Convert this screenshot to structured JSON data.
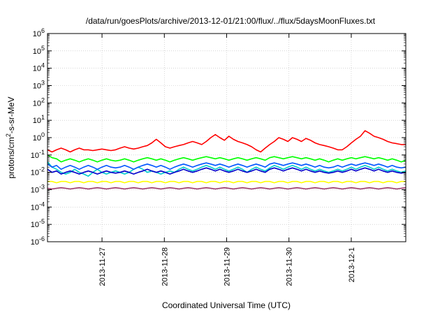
{
  "chart_data": {
    "type": "line",
    "title": "/data/run/goesPlots/archive/2013-12-01/21:00/flux/../flux/5daysMoonFluxes.txt",
    "xlabel": "Coordinated Universal Time (UTC)",
    "ylabel": "protons/cm2-s-sr-MeV",
    "ylabel_parts": [
      "protons/cm",
      "2",
      "-s-sr-MeV"
    ],
    "yscale": "log",
    "ylim": [
      1e-06,
      1000000.0
    ],
    "y_ticks": [
      {
        "value": 1e-06,
        "base": "10",
        "exp": "-6"
      },
      {
        "value": 1e-05,
        "base": "10",
        "exp": "-5"
      },
      {
        "value": 0.0001,
        "base": "10",
        "exp": "-4"
      },
      {
        "value": 0.001,
        "base": "10",
        "exp": "-3"
      },
      {
        "value": 0.01,
        "base": "10",
        "exp": "-2"
      },
      {
        "value": 0.1,
        "base": "10",
        "exp": "-1"
      },
      {
        "value": 1,
        "base": "10",
        "exp": "0"
      },
      {
        "value": 10,
        "base": "10",
        "exp": "1"
      },
      {
        "value": 100,
        "base": "10",
        "exp": "2"
      },
      {
        "value": 1000,
        "base": "10",
        "exp": "3"
      },
      {
        "value": 10000,
        "base": "10",
        "exp": "4"
      },
      {
        "value": 100000,
        "base": "10",
        "exp": "5"
      },
      {
        "value": 1000000,
        "base": "10",
        "exp": "6"
      }
    ],
    "xlim": [
      "2013-11-26T03:00",
      "2013-12-01T21:00"
    ],
    "x_ticks": [
      "2013-11-27",
      "2013-11-28",
      "2013-11-29",
      "2013-11-30",
      "2013-12-1"
    ],
    "x_tick_values": [
      "2013-11-27T00:00",
      "2013-11-28T00:00",
      "2013-11-29T00:00",
      "2013-11-30T00:00",
      "2013-12-01T00:00"
    ],
    "grid": true,
    "legend": "none",
    "series": [
      {
        "color": "#ff0000",
        "values": [
          0.2,
          0.15,
          0.2,
          0.25,
          0.2,
          0.15,
          0.2,
          0.25,
          0.2,
          0.2,
          0.18,
          0.2,
          0.22,
          0.2,
          0.18,
          0.2,
          0.25,
          0.3,
          0.25,
          0.22,
          0.25,
          0.3,
          0.35,
          0.5,
          0.8,
          0.5,
          0.3,
          0.25,
          0.3,
          0.35,
          0.4,
          0.5,
          0.6,
          0.5,
          0.4,
          0.6,
          1.0,
          1.5,
          1.0,
          0.7,
          1.2,
          0.8,
          0.6,
          0.5,
          0.4,
          0.3,
          0.2,
          0.15,
          0.25,
          0.4,
          0.6,
          1.0,
          0.8,
          0.6,
          1.0,
          0.8,
          0.6,
          0.9,
          0.7,
          0.5,
          0.4,
          0.35,
          0.3,
          0.25,
          0.2,
          0.2,
          0.3,
          0.5,
          0.8,
          1.2,
          2.5,
          1.8,
          1.2,
          1.0,
          0.8,
          0.6,
          0.5,
          0.45,
          0.4,
          0.4
        ]
      },
      {
        "color": "#00ff00",
        "values": [
          0.1,
          0.07,
          0.06,
          0.04,
          0.05,
          0.06,
          0.05,
          0.04,
          0.05,
          0.06,
          0.05,
          0.04,
          0.05,
          0.06,
          0.05,
          0.045,
          0.05,
          0.06,
          0.05,
          0.04,
          0.05,
          0.06,
          0.07,
          0.06,
          0.05,
          0.06,
          0.05,
          0.04,
          0.05,
          0.06,
          0.07,
          0.06,
          0.05,
          0.06,
          0.07,
          0.08,
          0.07,
          0.06,
          0.07,
          0.06,
          0.05,
          0.06,
          0.07,
          0.06,
          0.05,
          0.06,
          0.07,
          0.06,
          0.05,
          0.07,
          0.08,
          0.07,
          0.06,
          0.07,
          0.08,
          0.07,
          0.06,
          0.07,
          0.06,
          0.05,
          0.06,
          0.05,
          0.04,
          0.05,
          0.06,
          0.05,
          0.06,
          0.07,
          0.06,
          0.07,
          0.08,
          0.07,
          0.06,
          0.07,
          0.06,
          0.05,
          0.06,
          0.05,
          0.04,
          0.05
        ]
      },
      {
        "color": "#00cccc",
        "values": [
          0.04,
          0.02,
          0.015,
          0.01,
          0.008,
          0.01,
          0.015,
          0.01,
          0.008,
          0.006,
          0.01,
          0.015,
          0.01,
          0.008,
          0.01,
          0.012,
          0.01,
          0.008,
          0.01,
          0.015,
          0.02,
          0.015,
          0.01,
          0.012,
          0.01,
          0.008,
          0.01,
          0.012,
          0.01,
          0.015,
          0.02,
          0.015,
          0.012,
          0.015,
          0.02,
          0.025,
          0.02,
          0.015,
          0.02,
          0.015,
          0.012,
          0.015,
          0.02,
          0.015,
          0.01,
          0.015,
          0.02,
          0.015,
          0.012,
          0.018,
          0.025,
          0.02,
          0.015,
          0.02,
          0.025,
          0.02,
          0.015,
          0.02,
          0.015,
          0.012,
          0.015,
          0.012,
          0.01,
          0.012,
          0.015,
          0.012,
          0.015,
          0.02,
          0.015,
          0.02,
          0.025,
          0.02,
          0.015,
          0.02,
          0.015,
          0.012,
          0.015,
          0.012,
          0.01,
          0.012
        ]
      },
      {
        "color": "#0055ff",
        "values": [
          0.03,
          0.02,
          0.025,
          0.015,
          0.02,
          0.025,
          0.02,
          0.015,
          0.02,
          0.025,
          0.02,
          0.015,
          0.02,
          0.025,
          0.02,
          0.018,
          0.02,
          0.025,
          0.02,
          0.015,
          0.02,
          0.025,
          0.03,
          0.025,
          0.02,
          0.025,
          0.02,
          0.015,
          0.02,
          0.025,
          0.03,
          0.025,
          0.02,
          0.025,
          0.03,
          0.035,
          0.03,
          0.025,
          0.03,
          0.025,
          0.02,
          0.025,
          0.03,
          0.025,
          0.02,
          0.025,
          0.03,
          0.025,
          0.02,
          0.03,
          0.035,
          0.03,
          0.025,
          0.03,
          0.035,
          0.03,
          0.025,
          0.03,
          0.025,
          0.02,
          0.025,
          0.02,
          0.018,
          0.02,
          0.025,
          0.02,
          0.025,
          0.03,
          0.025,
          0.03,
          0.035,
          0.03,
          0.025,
          0.03,
          0.025,
          0.02,
          0.025,
          0.02,
          0.018,
          0.02
        ]
      },
      {
        "color": "#0000cc",
        "values": [
          0.015,
          0.01,
          0.012,
          0.008,
          0.01,
          0.012,
          0.01,
          0.008,
          0.01,
          0.012,
          0.01,
          0.008,
          0.01,
          0.012,
          0.01,
          0.009,
          0.01,
          0.012,
          0.01,
          0.008,
          0.01,
          0.012,
          0.015,
          0.012,
          0.01,
          0.012,
          0.01,
          0.008,
          0.01,
          0.012,
          0.015,
          0.012,
          0.01,
          0.012,
          0.015,
          0.018,
          0.015,
          0.012,
          0.015,
          0.012,
          0.01,
          0.012,
          0.015,
          0.012,
          0.01,
          0.012,
          0.015,
          0.012,
          0.01,
          0.015,
          0.018,
          0.015,
          0.012,
          0.015,
          0.018,
          0.015,
          0.012,
          0.015,
          0.012,
          0.01,
          0.012,
          0.01,
          0.009,
          0.01,
          0.012,
          0.01,
          0.012,
          0.015,
          0.012,
          0.015,
          0.018,
          0.015,
          0.012,
          0.015,
          0.012,
          0.01,
          0.012,
          0.01,
          0.009,
          0.01
        ]
      },
      {
        "color": "#ffff00",
        "values": [
          0.003,
          0.003,
          0.0025,
          0.003,
          0.003,
          0.0025,
          0.003,
          0.003,
          0.0025,
          0.003,
          0.003,
          0.0025,
          0.003,
          0.003,
          0.0025,
          0.003,
          0.003,
          0.0025,
          0.003,
          0.003,
          0.0025,
          0.003,
          0.003,
          0.0025,
          0.003,
          0.003,
          0.0025,
          0.003,
          0.003,
          0.0025,
          0.003,
          0.003,
          0.0025,
          0.003,
          0.003,
          0.0025,
          0.003,
          0.003,
          0.0025,
          0.003,
          0.003,
          0.0025,
          0.003,
          0.003,
          0.0025,
          0.003,
          0.003,
          0.0025,
          0.003,
          0.003,
          0.0025,
          0.003,
          0.003,
          0.0025,
          0.003,
          0.003,
          0.0025,
          0.003,
          0.003,
          0.0025,
          0.003,
          0.003,
          0.0025,
          0.003,
          0.003,
          0.0025,
          0.003,
          0.003,
          0.0025,
          0.003,
          0.003,
          0.0025,
          0.003,
          0.003,
          0.0025,
          0.003,
          0.003,
          0.0025,
          0.003,
          0.003
        ]
      },
      {
        "color": "#993366",
        "values": [
          0.0012,
          0.0011,
          0.0012,
          0.0013,
          0.0012,
          0.0011,
          0.0012,
          0.0013,
          0.0012,
          0.0011,
          0.0012,
          0.0013,
          0.0012,
          0.0011,
          0.0012,
          0.0013,
          0.0012,
          0.0011,
          0.0012,
          0.0013,
          0.0012,
          0.0011,
          0.0012,
          0.0013,
          0.0012,
          0.0011,
          0.0012,
          0.0013,
          0.0012,
          0.0011,
          0.0012,
          0.0013,
          0.0012,
          0.0011,
          0.0012,
          0.0013,
          0.0012,
          0.0011,
          0.0012,
          0.0013,
          0.0012,
          0.0011,
          0.0012,
          0.0013,
          0.0012,
          0.0011,
          0.0012,
          0.0013,
          0.0012,
          0.0011,
          0.0012,
          0.0013,
          0.0012,
          0.0011,
          0.0012,
          0.0013,
          0.0012,
          0.0011,
          0.0012,
          0.0013,
          0.0012,
          0.0011,
          0.0012,
          0.0013,
          0.0012,
          0.0011,
          0.0012,
          0.0013,
          0.0012,
          0.0011,
          0.0012,
          0.0013,
          0.0012,
          0.0011,
          0.0012,
          0.0013,
          0.0012,
          0.0011,
          0.0012,
          0.0013
        ]
      }
    ]
  }
}
